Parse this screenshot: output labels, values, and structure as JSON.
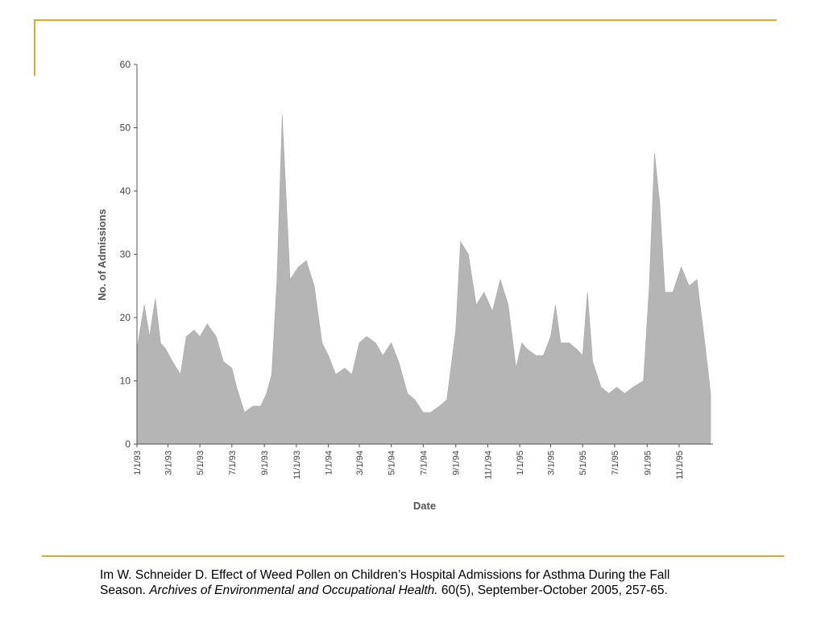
{
  "slide": {
    "accent_color": "#e2a72e",
    "citation": {
      "part1": "Im W. Schneider D.  Effect of Weed Pollen on Children’s Hospital Admissions for Asthma During the Fall Season.  ",
      "journal": "Archives of Environmental and Occupational Health.",
      "part2": "  60(5), September-October 2005, 257-65."
    }
  },
  "chart_data": {
    "type": "area",
    "title": "",
    "xlabel": "Date",
    "ylabel": "No. of Admissions",
    "ylim": [
      0,
      60
    ],
    "yticks": [
      0,
      10,
      20,
      30,
      40,
      50,
      60
    ],
    "xlim": [
      "1993-01-01",
      "1995-12-31"
    ],
    "xtick_labels": [
      "1/1/93",
      "3/1/93",
      "5/1/93",
      "7/1/93",
      "9/1/93",
      "11/1/93",
      "1/1/94",
      "3/1/94",
      "5/1/94",
      "7/1/94",
      "9/1/94",
      "11/1/94",
      "1/1/95",
      "3/1/95",
      "5/1/95",
      "7/1/95",
      "9/1/95",
      "11/1/95"
    ],
    "fill_color": "#b5b5b5",
    "grid": false,
    "x": [
      "1993-01-01",
      "1993-01-15",
      "1993-01-25",
      "1993-02-05",
      "1993-02-15",
      "1993-02-25",
      "1993-03-10",
      "1993-03-25",
      "1993-04-05",
      "1993-04-20",
      "1993-05-01",
      "1993-05-15",
      "1993-06-01",
      "1993-06-15",
      "1993-07-01",
      "1993-07-10",
      "1993-07-25",
      "1993-08-10",
      "1993-08-25",
      "1993-09-05",
      "1993-09-15",
      "1993-09-25",
      "1993-10-05",
      "1993-10-20",
      "1993-11-05",
      "1993-11-20",
      "1993-12-05",
      "1993-12-20",
      "1994-01-01",
      "1994-01-15",
      "1994-02-01",
      "1994-02-15",
      "1994-03-01",
      "1994-03-15",
      "1994-04-01",
      "1994-04-15",
      "1994-05-01",
      "1994-05-15",
      "1994-06-01",
      "1994-06-15",
      "1994-07-01",
      "1994-07-15",
      "1994-08-01",
      "1994-08-15",
      "1994-09-01",
      "1994-09-10",
      "1994-09-25",
      "1994-10-10",
      "1994-10-25",
      "1994-11-10",
      "1994-11-25",
      "1994-12-10",
      "1994-12-25",
      "1995-01-05",
      "1995-01-15",
      "1995-02-01",
      "1995-02-15",
      "1995-03-01",
      "1995-03-10",
      "1995-03-20",
      "1995-04-05",
      "1995-04-20",
      "1995-05-01",
      "1995-05-10",
      "1995-05-20",
      "1995-06-05",
      "1995-06-20",
      "1995-07-05",
      "1995-07-20",
      "1995-08-05",
      "1995-08-25",
      "1995-09-05",
      "1995-09-15",
      "1995-09-25",
      "1995-10-05",
      "1995-10-20",
      "1995-11-05",
      "1995-11-20",
      "1995-12-05",
      "1995-12-20",
      "1995-12-31"
    ],
    "values": [
      15,
      22,
      17,
      23,
      16,
      15,
      13,
      11,
      17,
      18,
      17,
      19,
      17,
      13,
      12,
      9,
      5,
      6,
      6,
      8,
      11,
      26,
      52,
      26,
      28,
      29,
      25,
      16,
      14,
      11,
      12,
      11,
      16,
      17,
      16,
      14,
      16,
      13,
      8,
      7,
      5,
      5,
      6,
      7,
      18,
      32,
      30,
      22,
      24,
      21,
      26,
      22,
      12,
      16,
      15,
      14,
      14,
      17,
      22,
      16,
      16,
      15,
      14,
      24,
      13,
      9,
      8,
      9,
      8,
      9,
      10,
      25,
      46,
      38,
      24,
      24,
      28,
      25,
      26,
      16,
      8
    ]
  }
}
